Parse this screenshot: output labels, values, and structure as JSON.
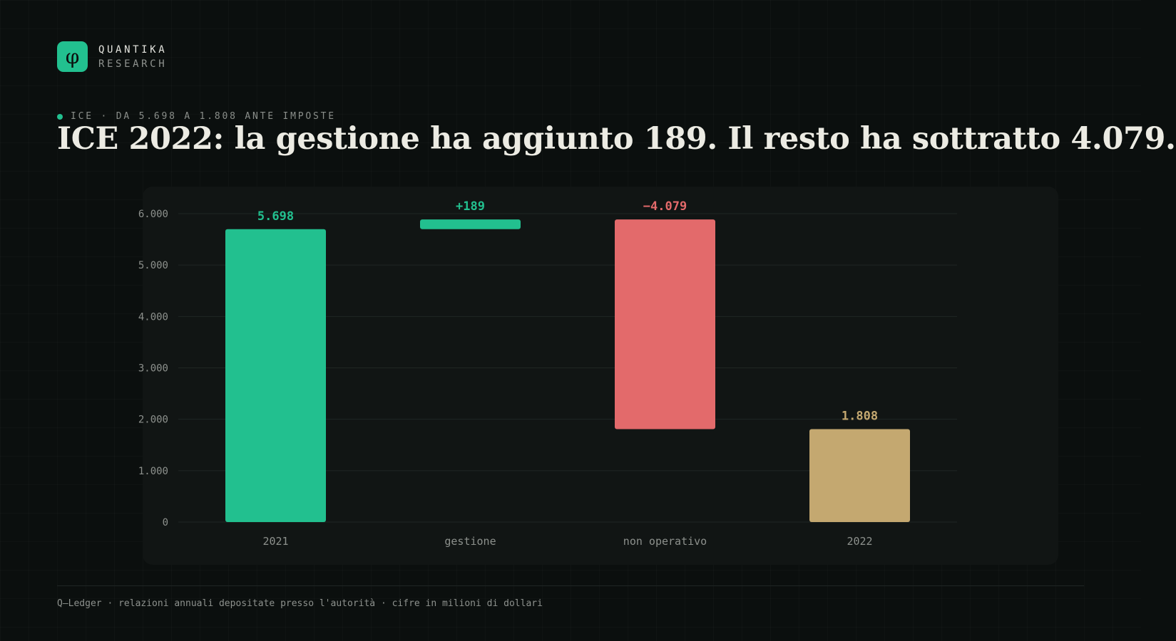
{
  "brand": {
    "logo_glyph": "φ",
    "name": "QUANTIKA",
    "sub": "RESEARCH"
  },
  "kicker": "ICE · DA 5.698 A 1.808 ANTE IMPOSTE",
  "title": "ICE 2022: la gestione ha aggiunto 189. Il resto ha sottratto 4.079.",
  "footnote": "Q—Ledger · relazioni annuali depositate presso l'autorità · cifre in milioni di dollari",
  "colors": {
    "accent": "#22c08f",
    "positive": "#22c08f",
    "negative": "#e36a6b",
    "total_end": "#c4a870",
    "text": "#ecebe3",
    "axis_text": "#8d918d",
    "grid": "#202624"
  },
  "chart_data": {
    "type": "bar",
    "subtype": "waterfall",
    "categories": [
      "2021",
      "gestione",
      "non operativo",
      "2022"
    ],
    "values": [
      5698,
      189,
      -4079,
      1808
    ],
    "kinds": [
      "total",
      "delta",
      "delta",
      "total"
    ],
    "value_labels": [
      "5.698",
      "+189",
      "−4.079",
      "1.808"
    ],
    "ylim": [
      0,
      6000
    ],
    "yticks": [
      0,
      1000,
      2000,
      3000,
      4000,
      5000,
      6000
    ],
    "ytick_labels": [
      "0",
      "1.000",
      "2.000",
      "3.000",
      "4.000",
      "5.000",
      "6.000"
    ],
    "grid": true,
    "title": "",
    "xlabel": "",
    "ylabel": ""
  }
}
